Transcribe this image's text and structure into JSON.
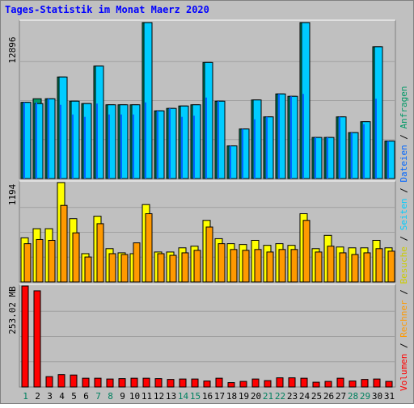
{
  "chart_data": [
    {
      "type": "bar",
      "title": "Tages-Statistik im Monat Maerz 2020",
      "x": [
        "1",
        "2",
        "3",
        "4",
        "5",
        "6",
        "7",
        "8",
        "9",
        "10",
        "11",
        "12",
        "13",
        "14",
        "15",
        "16",
        "17",
        "18",
        "19",
        "20",
        "21",
        "22",
        "23",
        "24",
        "25",
        "26",
        "27",
        "28",
        "29",
        "30",
        "31"
      ],
      "weekend_days": [
        "1",
        "7",
        "8",
        "14",
        "15",
        "21",
        "22",
        "28",
        "29"
      ],
      "ymax_label": "12896",
      "ylim": [
        0,
        12896
      ],
      "series": [
        {
          "name": "Anfragen",
          "color": "#009966",
          "values": [
            6300,
            6600,
            6600,
            8400,
            6400,
            6200,
            9300,
            6100,
            6100,
            6100,
            12900,
            5600,
            5800,
            6000,
            6100,
            9600,
            6400,
            2700,
            4100,
            6500,
            5100,
            7000,
            6800,
            12900,
            3400,
            3400,
            5100,
            3800,
            4700,
            10900,
            3100
          ]
        },
        {
          "name": "Dateien",
          "color": "#0066ff",
          "values": [
            6300,
            6300,
            6600,
            6100,
            5300,
            5100,
            6200,
            5300,
            5300,
            5300,
            6300,
            5600,
            5800,
            5100,
            5200,
            6700,
            6400,
            2700,
            4100,
            4900,
            5100,
            7000,
            6800,
            7000,
            3400,
            3400,
            5100,
            3800,
            4500,
            6600,
            3100
          ]
        },
        {
          "name": "Seiten",
          "color": "#00ccff",
          "values": [
            6300,
            6200,
            6600,
            8400,
            6400,
            6200,
            9300,
            6100,
            6100,
            6100,
            12900,
            5600,
            5800,
            6000,
            6100,
            9600,
            6400,
            2700,
            4100,
            6500,
            5100,
            7000,
            6800,
            12900,
            3400,
            3400,
            5100,
            3800,
            4700,
            10900,
            3100
          ]
        }
      ]
    },
    {
      "type": "bar",
      "ymax_label": "1194",
      "ylim": [
        0,
        1194
      ],
      "series": [
        {
          "name": "Besuche",
          "color": "#ffff00",
          "values": [
            530,
            640,
            640,
            1194,
            760,
            340,
            790,
            400,
            350,
            340,
            930,
            360,
            360,
            410,
            430,
            740,
            520,
            460,
            450,
            500,
            440,
            460,
            440,
            820,
            400,
            560,
            420,
            410,
            410,
            500,
            410
          ]
        },
        {
          "name": "Rechner",
          "color": "#ff9900",
          "values": [
            460,
            510,
            500,
            920,
            590,
            300,
            700,
            340,
            330,
            470,
            820,
            340,
            320,
            350,
            380,
            660,
            460,
            390,
            380,
            390,
            360,
            390,
            390,
            740,
            360,
            430,
            350,
            330,
            350,
            400,
            370
          ]
        }
      ]
    },
    {
      "type": "bar",
      "ymax_label": "253.02 MB",
      "ylim": [
        0,
        253.02
      ],
      "series": [
        {
          "name": "Volumen",
          "color": "#ff0000",
          "values": [
            253.02,
            241,
            26,
            31,
            30,
            22,
            22,
            20,
            21,
            22,
            22,
            21,
            19,
            20,
            20,
            15,
            22,
            11,
            14,
            20,
            16,
            23,
            23,
            22,
            12,
            14,
            22,
            15,
            19,
            20,
            14
          ]
        }
      ]
    }
  ],
  "legend_separator": " / "
}
